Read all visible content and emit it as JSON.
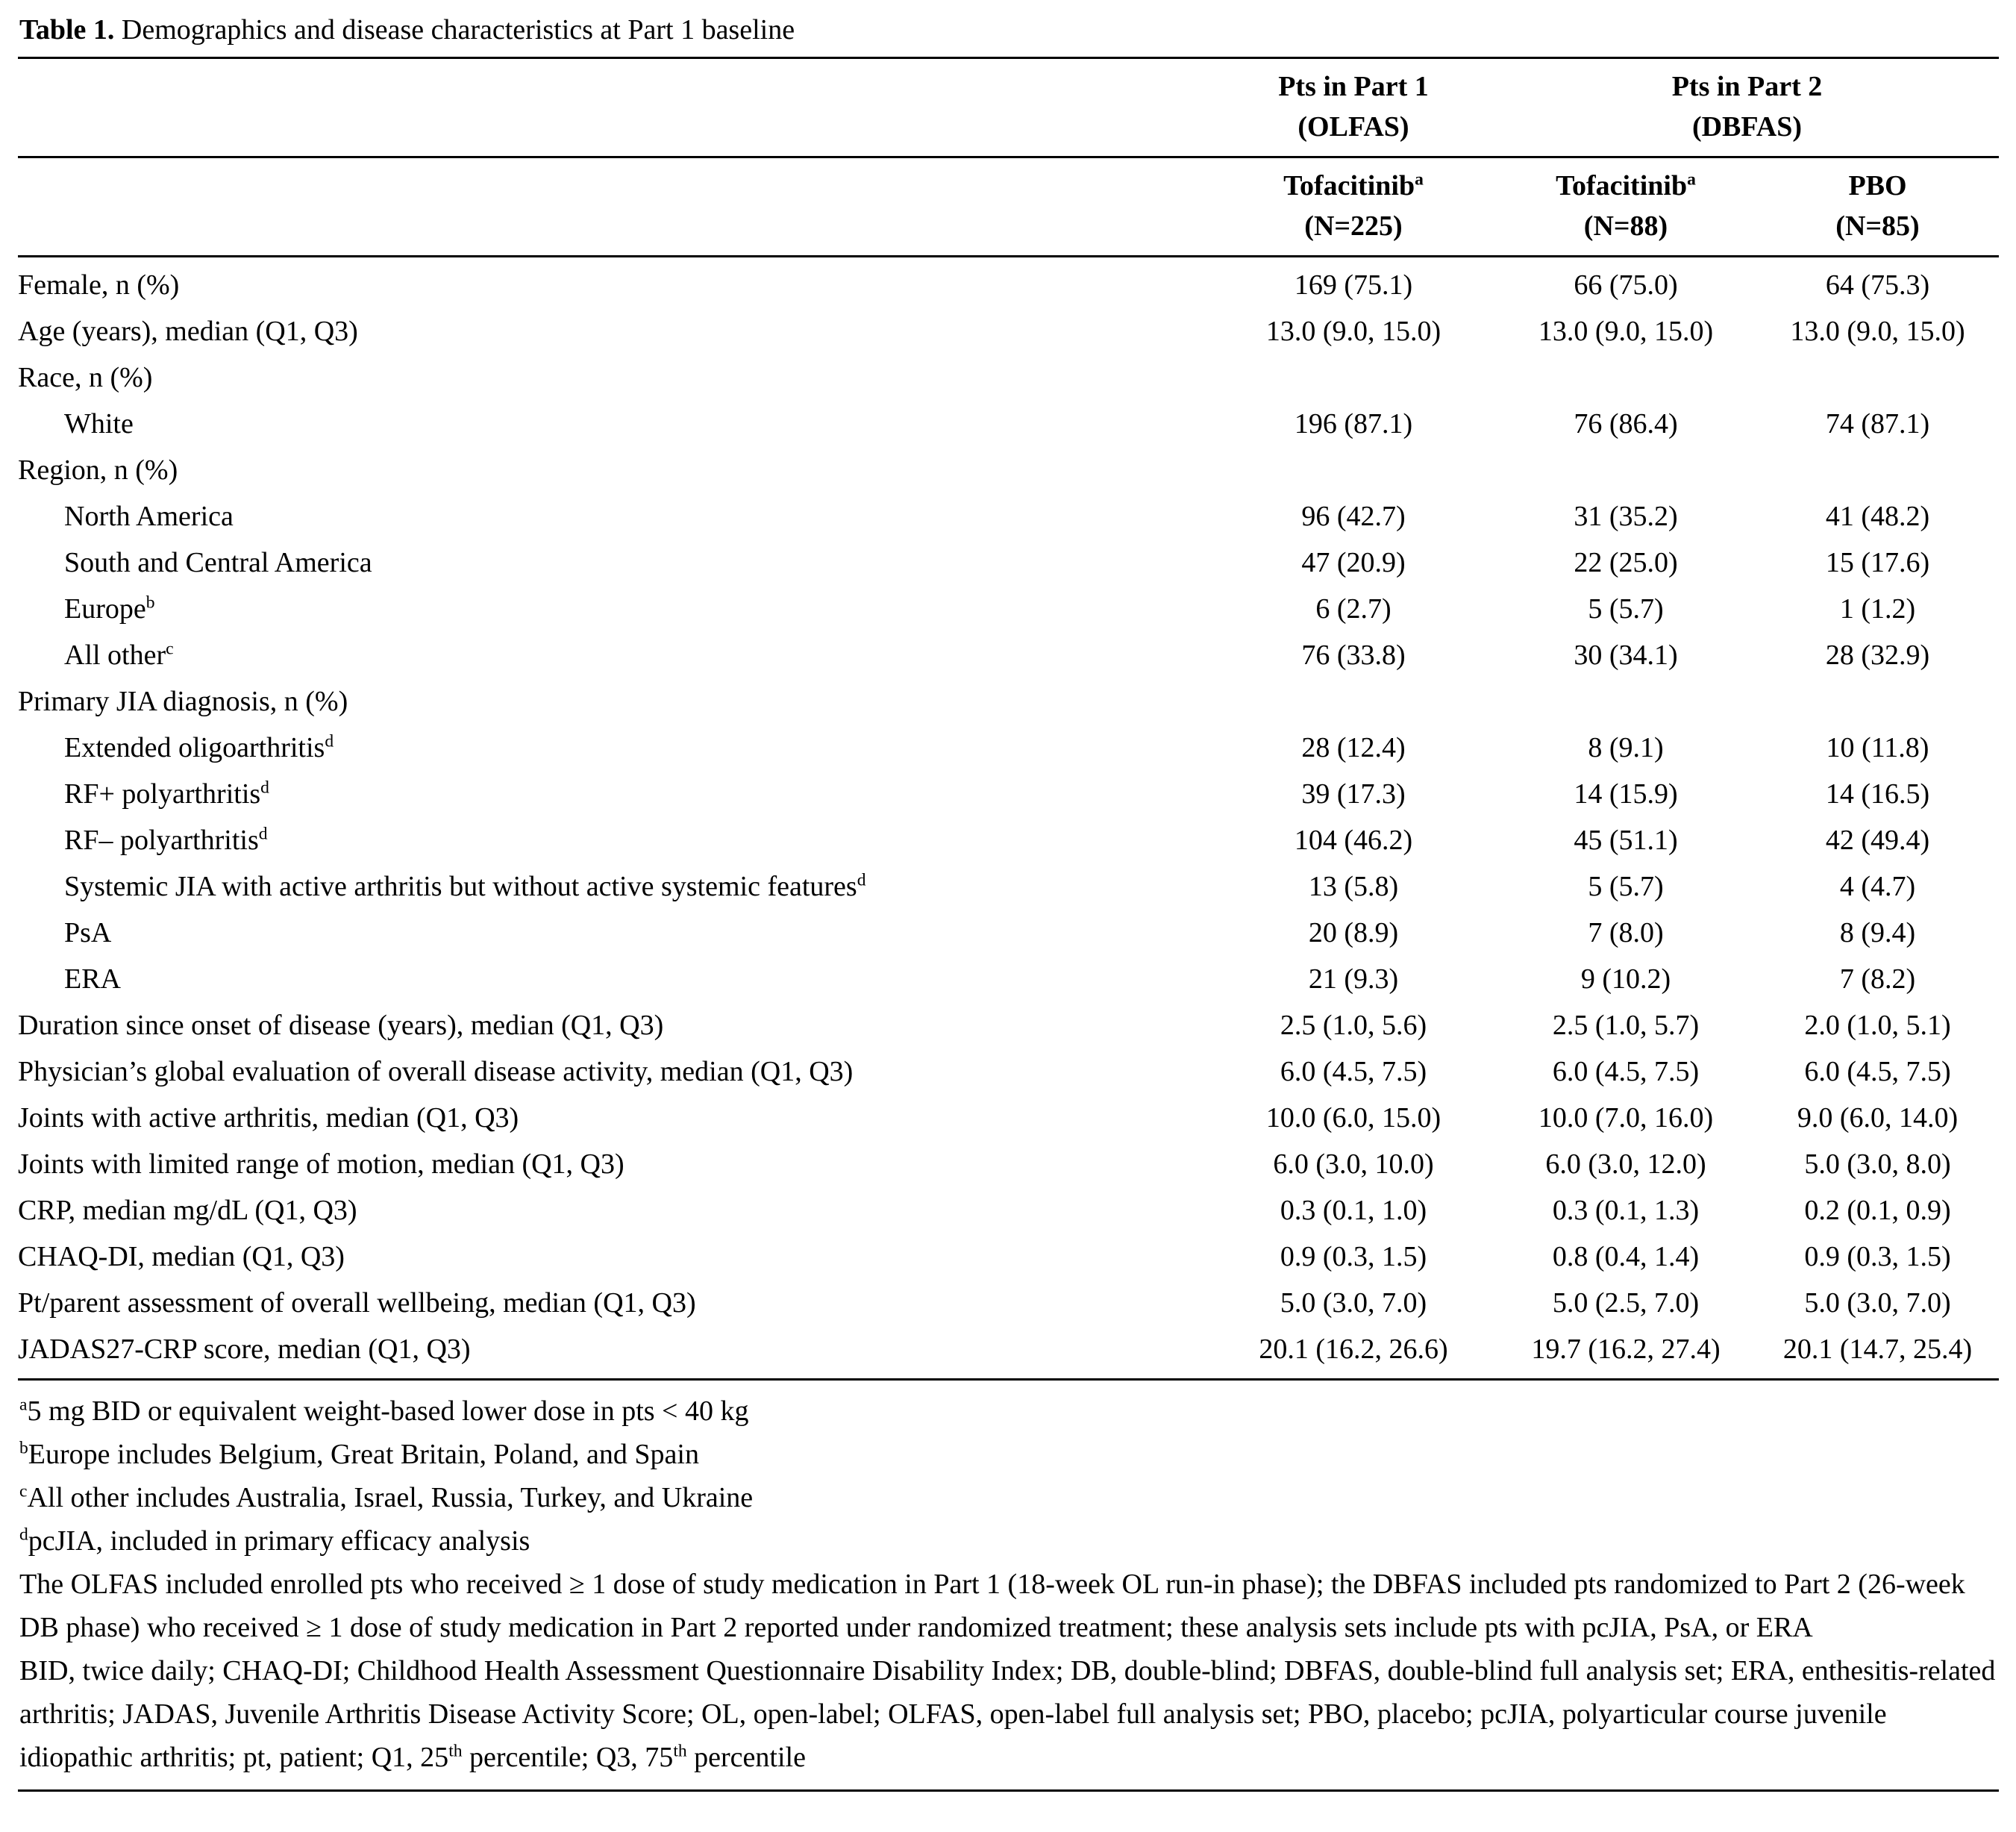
{
  "title": {
    "prefix": "Table 1.",
    "caption": " Demographics and disease characteristics at Part 1 baseline"
  },
  "header": {
    "groups": [
      {
        "line1": "Pts in Part 1",
        "line2": "(OLFAS)"
      },
      {
        "line1": "Pts in Part 2",
        "line2": "(DBFAS)"
      }
    ],
    "columns": [
      {
        "name": "Tofacitinib",
        "sup": "a",
        "n": "(N=225)"
      },
      {
        "name": "Tofacitinib",
        "sup": "a",
        "n": "(N=88)"
      },
      {
        "name": "PBO",
        "sup": "",
        "n": "(N=85)"
      }
    ]
  },
  "rows": [
    {
      "label": "Female, n (%)",
      "sup": "",
      "indent": 0,
      "values": [
        "169 (75.1)",
        "66 (75.0)",
        "64 (75.3)"
      ]
    },
    {
      "label": "Age (years), median (Q1, Q3)",
      "sup": "",
      "indent": 0,
      "values": [
        "13.0 (9.0, 15.0)",
        "13.0 (9.0, 15.0)",
        "13.0 (9.0, 15.0)"
      ]
    },
    {
      "label": "Race, n (%)",
      "sup": "",
      "indent": 0,
      "values": [
        "",
        "",
        ""
      ]
    },
    {
      "label": "White",
      "sup": "",
      "indent": 1,
      "values": [
        "196 (87.1)",
        "76 (86.4)",
        "74 (87.1)"
      ]
    },
    {
      "label": "Region, n (%)",
      "sup": "",
      "indent": 0,
      "values": [
        "",
        "",
        ""
      ]
    },
    {
      "label": "North America",
      "sup": "",
      "indent": 1,
      "values": [
        "96 (42.7)",
        "31 (35.2)",
        "41 (48.2)"
      ]
    },
    {
      "label": "South and Central America",
      "sup": "",
      "indent": 1,
      "values": [
        "47 (20.9)",
        "22 (25.0)",
        "15 (17.6)"
      ]
    },
    {
      "label": "Europe",
      "sup": "b",
      "indent": 1,
      "values": [
        "6 (2.7)",
        "5 (5.7)",
        "1 (1.2)"
      ]
    },
    {
      "label": "All other",
      "sup": "c",
      "indent": 1,
      "values": [
        "76 (33.8)",
        "30 (34.1)",
        "28 (32.9)"
      ]
    },
    {
      "label": "Primary JIA diagnosis, n (%)",
      "sup": "",
      "indent": 0,
      "values": [
        "",
        "",
        ""
      ]
    },
    {
      "label": "Extended oligoarthritis",
      "sup": "d",
      "indent": 1,
      "values": [
        "28 (12.4)",
        "8 (9.1)",
        "10 (11.8)"
      ]
    },
    {
      "label": "RF+ polyarthritis",
      "sup": "d",
      "indent": 1,
      "values": [
        "39 (17.3)",
        "14 (15.9)",
        "14 (16.5)"
      ]
    },
    {
      "label": "RF– polyarthritis",
      "sup": "d",
      "indent": 1,
      "values": [
        "104 (46.2)",
        "45 (51.1)",
        "42 (49.4)"
      ]
    },
    {
      "label": "Systemic JIA with active arthritis but without active systemic features",
      "sup": "d",
      "indent": 1,
      "values": [
        "13 (5.8)",
        "5 (5.7)",
        "4 (4.7)"
      ]
    },
    {
      "label": "PsA",
      "sup": "",
      "indent": 1,
      "values": [
        "20 (8.9)",
        "7 (8.0)",
        "8 (9.4)"
      ]
    },
    {
      "label": "ERA",
      "sup": "",
      "indent": 1,
      "values": [
        "21 (9.3)",
        "9 (10.2)",
        "7 (8.2)"
      ]
    },
    {
      "label": "Duration since onset of disease (years), median (Q1, Q3)",
      "sup": "",
      "indent": 0,
      "values": [
        "2.5 (1.0, 5.6)",
        "2.5 (1.0, 5.7)",
        "2.0 (1.0, 5.1)"
      ]
    },
    {
      "label": "Physician’s global evaluation of overall disease activity, median (Q1, Q3)",
      "sup": "",
      "indent": 0,
      "values": [
        "6.0 (4.5, 7.5)",
        "6.0 (4.5, 7.5)",
        "6.0 (4.5, 7.5)"
      ]
    },
    {
      "label": "Joints with active arthritis, median (Q1, Q3)",
      "sup": "",
      "indent": 0,
      "values": [
        "10.0 (6.0, 15.0)",
        "10.0 (7.0, 16.0)",
        "9.0 (6.0, 14.0)"
      ]
    },
    {
      "label": "Joints with limited range of motion, median (Q1, Q3)",
      "sup": "",
      "indent": 0,
      "values": [
        "6.0 (3.0, 10.0)",
        "6.0 (3.0, 12.0)",
        "5.0 (3.0, 8.0)"
      ]
    },
    {
      "label": "CRP, median mg/dL (Q1, Q3)",
      "sup": "",
      "indent": 0,
      "values": [
        "0.3 (0.1, 1.0)",
        "0.3 (0.1, 1.3)",
        "0.2 (0.1, 0.9)"
      ]
    },
    {
      "label": "CHAQ-DI, median (Q1, Q3)",
      "sup": "",
      "indent": 0,
      "values": [
        "0.9 (0.3, 1.5)",
        "0.8 (0.4, 1.4)",
        "0.9 (0.3, 1.5)"
      ]
    },
    {
      "label": "Pt/parent assessment of overall wellbeing, median (Q1, Q3)",
      "sup": "",
      "indent": 0,
      "values": [
        "5.0 (3.0, 7.0)",
        "5.0 (2.5, 7.0)",
        "5.0 (3.0, 7.0)"
      ]
    },
    {
      "label": "JADAS27-CRP score, median (Q1, Q3)",
      "sup": "",
      "indent": 0,
      "values": [
        "20.1 (16.2, 26.6)",
        "19.7 (16.2, 27.4)",
        "20.1 (14.7, 25.4)"
      ]
    }
  ],
  "footnotes": [
    {
      "marker": "a",
      "segments": [
        {
          "text": "5 mg BID or equivalent weight-based lower dose in pts < 40 kg",
          "sup": false
        }
      ]
    },
    {
      "marker": "b",
      "segments": [
        {
          "text": "Europe includes Belgium, Great Britain, Poland, and Spain",
          "sup": false
        }
      ]
    },
    {
      "marker": "c",
      "segments": [
        {
          "text": "All other includes Australia, Israel, Russia, Turkey, and Ukraine",
          "sup": false
        }
      ]
    },
    {
      "marker": "d",
      "segments": [
        {
          "text": "pcJIA, included in primary efficacy analysis",
          "sup": false
        }
      ]
    },
    {
      "marker": "",
      "segments": [
        {
          "text": "The OLFAS included enrolled pts who received ≥ 1 dose of study medication in Part 1 (18-week OL run-in phase); the DBFAS included pts randomized to Part 2 (26-week DB phase) who received ≥ 1 dose of study medication in Part 2 reported under randomized treatment; these analysis sets include pts with pcJIA, PsA, or ERA",
          "sup": false
        }
      ]
    },
    {
      "marker": "",
      "segments": [
        {
          "text": "BID, twice daily; CHAQ-DI; Childhood Health Assessment Questionnaire Disability Index; DB, double-blind; DBFAS, double-blind full analysis set; ERA, enthesitis-related arthritis; JADAS, Juvenile Arthritis Disease Activity Score; OL, open-label; OLFAS, open-label full analysis set; PBO, placebo; pcJIA, polyarticular course juvenile idiopathic arthritis; pt, patient; Q1, 25",
          "sup": false
        },
        {
          "text": "th",
          "sup": true
        },
        {
          "text": " percentile; Q3, 75",
          "sup": false
        },
        {
          "text": "th",
          "sup": true
        },
        {
          "text": " percentile",
          "sup": false
        }
      ]
    }
  ]
}
